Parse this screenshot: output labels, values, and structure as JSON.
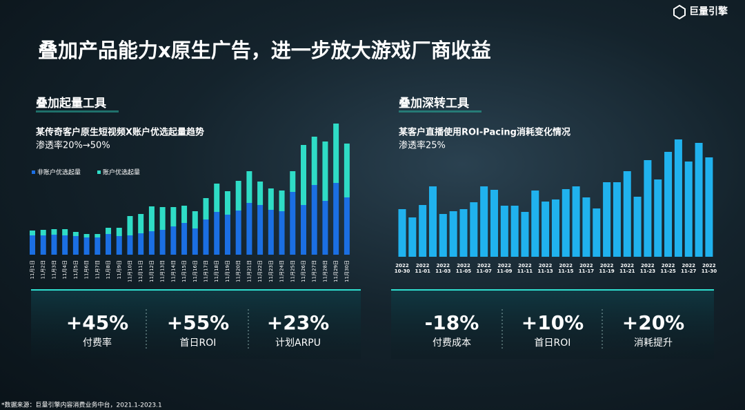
{
  "logo": "巨量引擎",
  "title": "叠加产品能力x原生广告，进一步放大游戏厂商收益",
  "chart_data": [
    {
      "type": "bar",
      "stacked": true,
      "section": "叠加起量工具",
      "title": "某传奇客户原生短视频X账户优选起量趋势",
      "subtitle": "渗透率20%→50%",
      "categories": [
        "11月1日",
        "11月2日",
        "11月3日",
        "11月4日",
        "11月5日",
        "11月6日",
        "11月7日",
        "11月8日",
        "11月9日",
        "11月10日",
        "11月11日",
        "11月12日",
        "11月13日",
        "11月14日",
        "11月15日",
        "11月16日",
        "11月17日",
        "11月18日",
        "11月19日",
        "11月20日",
        "11月21日",
        "11月22日",
        "11月23日",
        "11月24日",
        "11月25日",
        "11月26日",
        "11月27日",
        "11月28日",
        "11月29日",
        "11月30日"
      ],
      "series": [
        {
          "name": "非账户优选起量",
          "color": "#1b6fe3",
          "values": [
            28,
            28,
            29,
            28,
            27,
            25,
            25,
            30,
            27,
            28,
            31,
            34,
            36,
            41,
            46,
            38,
            51,
            62,
            58,
            64,
            75,
            72,
            65,
            63,
            91,
            72,
            101,
            78,
            104,
            83
          ]
        },
        {
          "name": "账户优选起量",
          "color": "#2fdcc6",
          "values": [
            7,
            8,
            8,
            9,
            6,
            5,
            5,
            9,
            12,
            28,
            28,
            36,
            33,
            28,
            25,
            25,
            31,
            41,
            34,
            43,
            46,
            34,
            31,
            30,
            30,
            87,
            70,
            86,
            86,
            78
          ]
        }
      ],
      "ylim": [
        0,
        200
      ],
      "legend": "top-left"
    },
    {
      "type": "bar",
      "section": "叠加深转工具",
      "title": "某客户直播使用ROI-Pacing消耗变化情况",
      "subtitle": "渗透率25%",
      "categories": [
        "2022\n10-30",
        null,
        "2022\n11-01",
        null,
        "2022\n11-03",
        null,
        "2022\n11-05",
        null,
        "2022\n11-07",
        null,
        "2022\n11-09",
        null,
        "2022\n11-11",
        null,
        "2022\n11-13",
        null,
        "2022\n11-15",
        null,
        "2022\n11-17",
        null,
        "2022\n11-19",
        null,
        "2022\n11-21",
        null,
        "2022\n11-23",
        null,
        "2022\n11-25",
        null,
        "2022\n11-27",
        null,
        "2022\n11-30"
      ],
      "color": "#20b2ee",
      "values": [
        69,
        57,
        75,
        102,
        62,
        66,
        69,
        79,
        102,
        97,
        74,
        74,
        65,
        96,
        80,
        83,
        98,
        102,
        86,
        70,
        108,
        108,
        124,
        87,
        140,
        112,
        152,
        170,
        138,
        165,
        144
      ],
      "ylim": [
        0,
        200
      ]
    }
  ],
  "stats": [
    [
      {
        "value": "+45%",
        "label": "付费率"
      },
      {
        "value": "+55%",
        "label": "首日ROI"
      },
      {
        "value": "+23%",
        "label": "计划ARPU"
      }
    ],
    [
      {
        "value": "-18%",
        "label": "付费成本"
      },
      {
        "value": "+10%",
        "label": "首日ROI"
      },
      {
        "value": "+20%",
        "label": "消耗提升"
      }
    ]
  ],
  "footer": "*数据来源：巨量引擎内容消费业务中台，2021.1-2023.1"
}
